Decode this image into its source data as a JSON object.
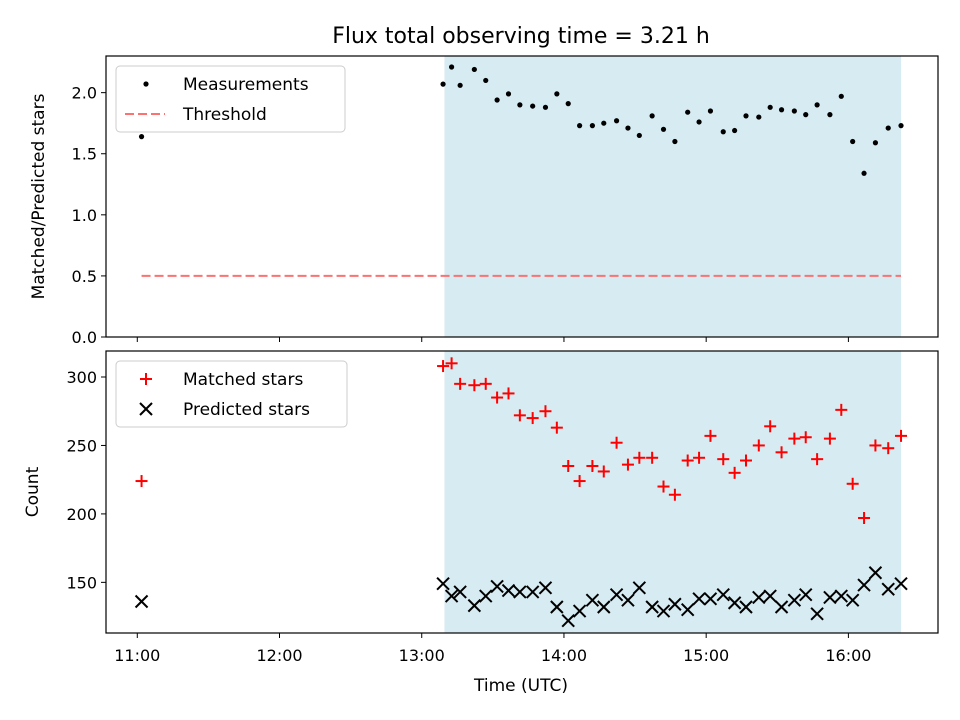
{
  "chart_data": {
    "title": "Flux total observing time = 3.21 h",
    "xlabel": "Time (UTC)",
    "x_ticks": [
      "11:00",
      "12:00",
      "13:00",
      "14:00",
      "15:00",
      "16:00"
    ],
    "x_tick_values": [
      11.0,
      12.0,
      13.0,
      14.0,
      15.0,
      16.0
    ],
    "xlim": [
      10.78,
      16.63
    ],
    "shaded_region": {
      "x_start": 13.16,
      "x_end": 16.37,
      "color": "#add8e6"
    },
    "times": [
      11.03,
      13.15,
      13.21,
      13.27,
      13.37,
      13.45,
      13.53,
      13.61,
      13.69,
      13.78,
      13.87,
      13.95,
      14.03,
      14.11,
      14.2,
      14.28,
      14.37,
      14.45,
      14.53,
      14.62,
      14.7,
      14.78,
      14.87,
      14.95,
      15.03,
      15.12,
      15.2,
      15.28,
      15.37,
      15.45,
      15.53,
      15.62,
      15.7,
      15.78,
      15.87,
      15.95,
      16.03,
      16.11,
      16.19,
      16.28,
      16.37
    ],
    "subplots": [
      {
        "type": "scatter",
        "ylabel": "Matched/Predicted stars",
        "ylim": [
          0,
          2.3
        ],
        "y_ticks": [
          0.0,
          0.5,
          1.0,
          1.5,
          2.0
        ],
        "y_tick_labels": [
          "0.0",
          "0.5",
          "1.0",
          "1.5",
          "2.0"
        ],
        "series": [
          {
            "name": "Measurements",
            "marker": "dot",
            "color": "#000000",
            "values": [
              1.64,
              2.07,
              2.21,
              2.06,
              2.19,
              2.1,
              1.94,
              1.99,
              1.9,
              1.89,
              1.88,
              1.99,
              1.91,
              1.73,
              1.73,
              1.75,
              1.77,
              1.71,
              1.65,
              1.81,
              1.7,
              1.6,
              1.84,
              1.76,
              1.85,
              1.68,
              1.69,
              1.81,
              1.8,
              1.88,
              1.86,
              1.85,
              1.82,
              1.9,
              1.82,
              1.97,
              1.6,
              1.34,
              1.59,
              1.71,
              1.73
            ]
          },
          {
            "name": "Threshold",
            "type": "line",
            "style": "dashed",
            "color": "#ff7070",
            "x_range": [
              11.03,
              16.37
            ],
            "value": 0.5
          }
        ],
        "legend_position": "top-left"
      },
      {
        "type": "scatter",
        "ylabel": "Count",
        "ylim": [
          113,
          319
        ],
        "y_ticks": [
          150,
          200,
          250,
          300
        ],
        "y_tick_labels": [
          "150",
          "200",
          "250",
          "300"
        ],
        "series": [
          {
            "name": "Matched stars",
            "marker": "plus",
            "color": "#ff0000",
            "values": [
              224,
              308,
              310,
              295,
              294,
              295,
              285,
              288,
              272,
              270,
              275,
              263,
              235,
              224,
              235,
              231,
              252,
              236,
              241,
              241,
              220,
              214,
              239,
              241,
              257,
              240,
              230,
              239,
              250,
              264,
              245,
              255,
              256,
              240,
              255,
              276,
              222,
              197,
              250,
              248,
              257
            ]
          },
          {
            "name": "Predicted stars",
            "marker": "x",
            "color": "#000000",
            "values": [
              136,
              149,
              140,
              143,
              133,
              140,
              147,
              144,
              143,
              143,
              146,
              132,
              122,
              129,
              137,
              132,
              141,
              137,
              146,
              132,
              129,
              134,
              130,
              138,
              138,
              141,
              135,
              132,
              139,
              140,
              132,
              137,
              141,
              127,
              139,
              140,
              137,
              148,
              157,
              145,
              149
            ]
          }
        ],
        "legend_position": "top-left"
      }
    ]
  }
}
